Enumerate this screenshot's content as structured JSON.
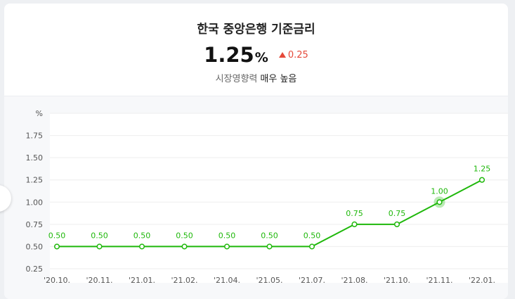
{
  "header": {
    "title": "한국 중앙은행 기준금리",
    "rate_value": "1.25",
    "rate_unit": "%",
    "change": "0.25",
    "influence_label": "시장영향력",
    "influence_level": "매우 높음"
  },
  "colors": {
    "line": "#1fb80b",
    "up": "#e5493a"
  },
  "chart_data": {
    "type": "line",
    "ylabel": "%",
    "ylim": [
      0.25,
      2.0
    ],
    "yticks": [
      "0.25",
      "0.50",
      "0.75",
      "1.00",
      "1.25",
      "1.50",
      "1.75"
    ],
    "x": [
      "'20.10.",
      "'20.11.",
      "'21.01.",
      "'21.02.",
      "'21.04.",
      "'21.05.",
      "'21.07.",
      "'21.08.",
      "'21.10.",
      "'21.11.",
      "'22.01."
    ],
    "series": [
      {
        "values": [
          0.5,
          0.5,
          0.5,
          0.5,
          0.5,
          0.5,
          0.5,
          0.75,
          0.75,
          1.0,
          1.25
        ],
        "labels": [
          "0.50",
          "0.50",
          "0.50",
          "0.50",
          "0.50",
          "0.50",
          "0.50",
          "0.75",
          "0.75",
          "1.00",
          "1.25"
        ],
        "highlight_index": 9
      }
    ],
    "grid": true
  }
}
